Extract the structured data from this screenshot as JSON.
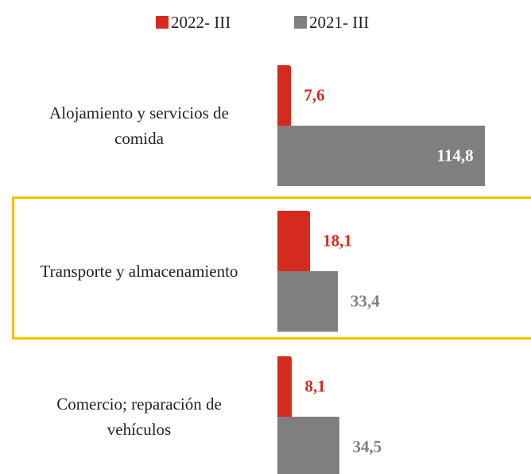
{
  "chart_data": {
    "type": "bar",
    "orientation": "horizontal",
    "categories": [
      "Alojamiento y servicios de comida",
      "Transporte y almacenamiento",
      "Comercio; reparación de vehículos"
    ],
    "series": [
      {
        "name": "2022- III",
        "color": "#d52b1e",
        "values": [
          7.6,
          18.1,
          8.1
        ],
        "value_labels": [
          "7,6",
          "18,1",
          "8,1"
        ]
      },
      {
        "name": "2021- III",
        "color": "#7f7f7f",
        "values": [
          114.8,
          33.4,
          34.5
        ],
        "value_labels": [
          "114,8",
          "33,4",
          "34,5"
        ]
      }
    ],
    "legend": "top"
  }
}
